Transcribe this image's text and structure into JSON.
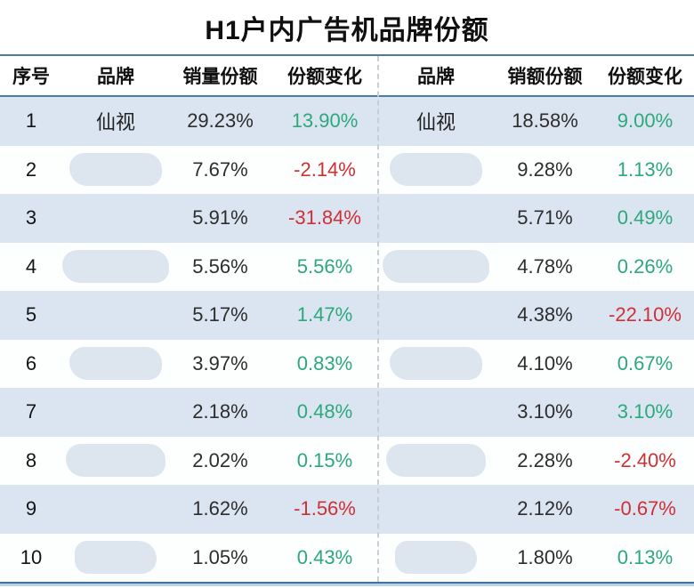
{
  "chart_data": {
    "type": "table",
    "title": "H1户内广告机品牌份额",
    "columns": [
      "序号",
      "品牌",
      "销量份额",
      "份额变化",
      "品牌",
      "销额份额",
      "份额变化"
    ],
    "rows": [
      {
        "no": "1",
        "brand": "仙视",
        "brand_redacted": false,
        "blob": false,
        "volume_share": "29.23%",
        "volume_change": "13.90%",
        "brand2": "仙视",
        "value_share": "18.58%",
        "value_change": "9.00%"
      },
      {
        "no": "2",
        "brand": "",
        "brand_redacted": true,
        "blob": true,
        "volume_share": "7.67%",
        "volume_change": "-2.14%",
        "brand2": "",
        "value_share": "9.28%",
        "value_change": "1.13%"
      },
      {
        "no": "3",
        "brand": "",
        "brand_redacted": true,
        "blob": false,
        "volume_share": "5.91%",
        "volume_change": "-31.84%",
        "brand2": "",
        "value_share": "5.71%",
        "value_change": "0.49%"
      },
      {
        "no": "4",
        "brand": "",
        "brand_redacted": true,
        "blob": true,
        "volume_share": "5.56%",
        "volume_change": "5.56%",
        "brand2": "",
        "value_share": "4.78%",
        "value_change": "0.26%"
      },
      {
        "no": "5",
        "brand": "",
        "brand_redacted": true,
        "blob": false,
        "volume_share": "5.17%",
        "volume_change": "1.47%",
        "brand2": "",
        "value_share": "4.38%",
        "value_change": "-22.10%"
      },
      {
        "no": "6",
        "brand": "",
        "brand_redacted": true,
        "blob": true,
        "volume_share": "3.97%",
        "volume_change": "0.83%",
        "brand2": "",
        "value_share": "4.10%",
        "value_change": "0.67%"
      },
      {
        "no": "7",
        "brand": "",
        "brand_redacted": true,
        "blob": false,
        "volume_share": "2.18%",
        "volume_change": "0.48%",
        "brand2": "",
        "value_share": "3.10%",
        "value_change": "3.10%"
      },
      {
        "no": "8",
        "brand": "",
        "brand_redacted": true,
        "blob": true,
        "volume_share": "2.02%",
        "volume_change": "0.15%",
        "brand2": "",
        "value_share": "2.28%",
        "value_change": "-2.40%"
      },
      {
        "no": "9",
        "brand": "",
        "brand_redacted": true,
        "blob": false,
        "volume_share": "1.62%",
        "volume_change": "-1.56%",
        "brand2": "",
        "value_share": "2.12%",
        "value_change": "-0.67%"
      },
      {
        "no": "10",
        "brand": "",
        "brand_redacted": true,
        "blob": true,
        "volume_share": "1.05%",
        "volume_change": "0.43%",
        "brand2": "",
        "value_share": "1.80%",
        "value_change": "0.13%"
      }
    ]
  },
  "colors": {
    "positive": "#2ca87c",
    "negative": "#d02f34",
    "alt_row_bg": "#dbe5f1",
    "table_line": "#4e7aa4",
    "bottom_strip": "#b8d4e4",
    "redacted_blob": "#dde5ef"
  }
}
